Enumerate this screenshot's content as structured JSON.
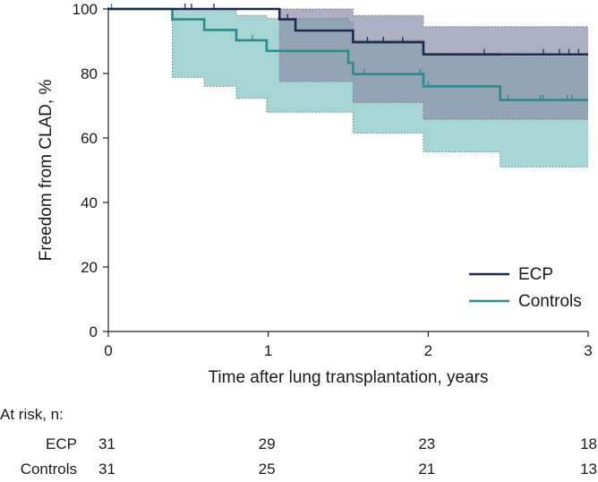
{
  "chart_data": {
    "type": "line",
    "subtype": "kaplan-meier",
    "title": "",
    "xlabel": "Time after lung transplantation, years",
    "ylabel": "Freedom from CLAD, %",
    "xlim": [
      0,
      3
    ],
    "ylim": [
      0,
      100
    ],
    "xticks": [
      "0",
      "1",
      "2",
      "3"
    ],
    "yticks": [
      "0",
      "20",
      "40",
      "60",
      "80",
      "100"
    ],
    "legend_position": "bottom-right",
    "series": [
      {
        "name": "ECP",
        "color": "#1f2a4f",
        "band_color": "#8a8faa",
        "steps": [
          [
            0,
            100
          ],
          [
            1.07,
            96.8
          ],
          [
            1.17,
            93.3
          ],
          [
            1.53,
            89.7
          ],
          [
            1.97,
            85.9
          ],
          [
            3,
            85.9
          ]
        ],
        "ci_upper": [
          [
            0,
            100
          ],
          [
            1.07,
            100
          ],
          [
            1.53,
            98
          ],
          [
            1.97,
            94.5
          ],
          [
            3,
            94.5
          ]
        ],
        "ci_lower": [
          [
            0,
            100
          ],
          [
            1.07,
            77.5
          ],
          [
            1.17,
            77.5
          ],
          [
            1.53,
            71
          ],
          [
            1.97,
            65.8
          ],
          [
            3,
            65.8
          ]
        ],
        "censored": [
          0.48,
          0.52,
          0.66,
          1.12,
          1.62,
          1.72,
          1.84,
          2.35,
          2.72,
          2.82,
          2.88,
          2.94
        ]
      },
      {
        "name": "Controls",
        "color": "#2f8a8a",
        "band_color": "#a6d6d3",
        "steps": [
          [
            0,
            100
          ],
          [
            0.4,
            96.8
          ],
          [
            0.6,
            93.5
          ],
          [
            0.8,
            90.3
          ],
          [
            0.99,
            87
          ],
          [
            1.5,
            83.3
          ],
          [
            1.53,
            79.8
          ],
          [
            1.97,
            76
          ],
          [
            2.45,
            71.8
          ],
          [
            3,
            71.8
          ]
        ],
        "ci_upper": [
          [
            0,
            100
          ],
          [
            0.4,
            100
          ],
          [
            0.6,
            100
          ],
          [
            0.8,
            98
          ],
          [
            0.99,
            97
          ],
          [
            1.5,
            96
          ],
          [
            1.53,
            90.3
          ],
          [
            1.97,
            86.3
          ],
          [
            2.45,
            85
          ],
          [
            3,
            85
          ]
        ],
        "ci_lower": [
          [
            0,
            100
          ],
          [
            0.4,
            78.8
          ],
          [
            0.6,
            76
          ],
          [
            0.8,
            72.3
          ],
          [
            0.99,
            68
          ],
          [
            1.5,
            68
          ],
          [
            1.53,
            61.5
          ],
          [
            1.97,
            55.7
          ],
          [
            2.45,
            51
          ],
          [
            3,
            51
          ]
        ],
        "censored": [
          0.02,
          0.9,
          1.6,
          1.95,
          2.0,
          2.5,
          2.7,
          2.72,
          2.87,
          2.9
        ]
      }
    ],
    "at_risk": {
      "label": "At risk, n:",
      "times": [
        0,
        1,
        2,
        3
      ],
      "rows": [
        {
          "name": "ECP",
          "values": [
            "31",
            "29",
            "23",
            "18"
          ]
        },
        {
          "name": "Controls",
          "values": [
            "31",
            "25",
            "21",
            "13"
          ]
        }
      ]
    }
  }
}
